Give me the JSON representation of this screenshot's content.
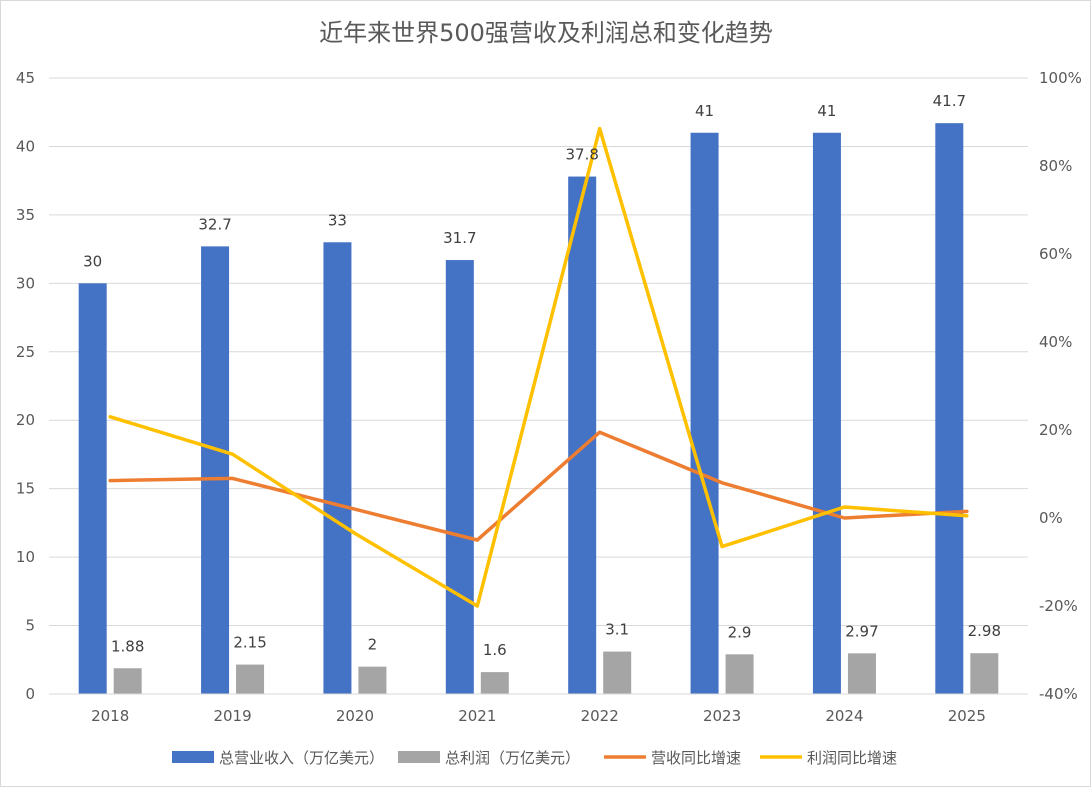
{
  "chart_data": {
    "type": "bar",
    "title": "近年来世界500强营收及利润总和变化趋势",
    "categories": [
      "2018",
      "2019",
      "2020",
      "2021",
      "2022",
      "2023",
      "2024",
      "2025"
    ],
    "series": [
      {
        "name": "总营业收入（万亿美元）",
        "type": "bar",
        "axis": "left",
        "color": "#4472C4",
        "values": [
          30,
          32.7,
          33,
          31.7,
          37.8,
          41,
          41,
          41.7
        ],
        "labels": [
          "30",
          "32.7",
          "33",
          "31.7",
          "37.8",
          "41",
          "41",
          "41.7"
        ]
      },
      {
        "name": "总利润（万亿美元）",
        "type": "bar",
        "axis": "left",
        "color": "#A5A5A5",
        "values": [
          1.88,
          2.15,
          2,
          1.6,
          3.1,
          2.9,
          2.97,
          2.98
        ],
        "labels": [
          "1.88",
          "2.15",
          "2",
          "1.6",
          "3.1",
          "2.9",
          "2.97",
          "2.98"
        ]
      },
      {
        "name": "营收同比增速",
        "type": "line",
        "axis": "right",
        "color": "#ED7D31",
        "values": [
          8.5,
          9,
          2,
          -5,
          19.5,
          8,
          0,
          1.5
        ]
      },
      {
        "name": "利润同比增速",
        "type": "line",
        "axis": "right",
        "color": "#FFC000",
        "values": [
          23,
          14.5,
          -3.5,
          -20,
          88.5,
          -6.5,
          2.5,
          0.5
        ]
      }
    ],
    "y_left": {
      "min": 0,
      "max": 45,
      "step": 5,
      "ticks": [
        "0",
        "5",
        "10",
        "15",
        "20",
        "25",
        "30",
        "35",
        "40",
        "45"
      ]
    },
    "y_right": {
      "min": -40,
      "max": 100,
      "step": 20,
      "ticks": [
        "-40%",
        "-20%",
        "0%",
        "20%",
        "40%",
        "60%",
        "80%",
        "100%"
      ]
    },
    "grid": true,
    "legend_position": "bottom"
  }
}
